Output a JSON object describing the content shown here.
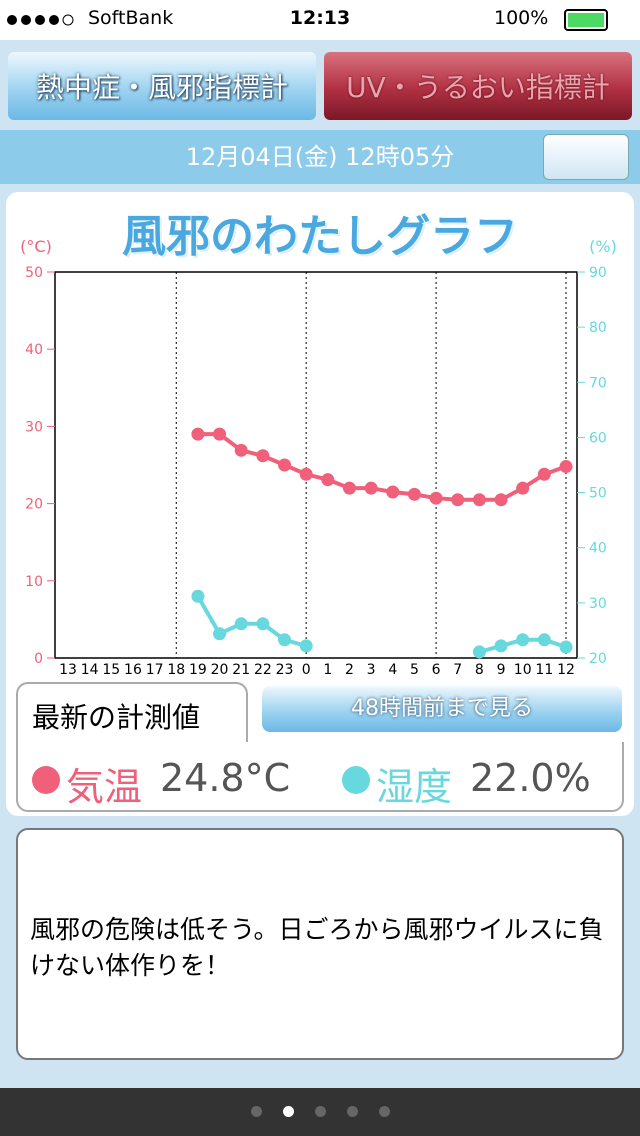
{
  "status_bar": {
    "carrier": "SoftBank",
    "time": "12:13",
    "battery": "100%"
  },
  "tabs": [
    "熱中症・風邪指標計",
    "UV・うるおい指標計"
  ],
  "date_bar": "12月04日(金) 12時05分",
  "chart_data": {
    "type": "line",
    "title": "風邪のわたしグラフ",
    "y_label": "(°C)",
    "y2_label": "(%)",
    "categories": [
      "13",
      "14",
      "15",
      "16",
      "17",
      "18",
      "19",
      "20",
      "21",
      "22",
      "23",
      "0",
      "1",
      "2",
      "3",
      "4",
      "5",
      "6",
      "7",
      "8",
      "9",
      "10",
      "11",
      "12"
    ],
    "series": [
      {
        "name": "気温",
        "color": "#f0607a",
        "values": [
          null,
          null,
          null,
          null,
          null,
          null,
          29.0,
          29.0,
          26.9,
          26.2,
          25.0,
          23.8,
          23.1,
          22.0,
          22.0,
          21.5,
          21.2,
          20.7,
          20.5,
          20.5,
          20.5,
          22.0,
          23.8,
          24.8
        ]
      },
      {
        "name": "湿度",
        "color": "#66d8de",
        "axis": "y2",
        "values": [
          null,
          null,
          null,
          null,
          null,
          null,
          31.2,
          24.4,
          26.2,
          26.2,
          23.3,
          22.2,
          null,
          null,
          null,
          null,
          null,
          null,
          null,
          21.1,
          22.2,
          23.3,
          23.3,
          22.0
        ]
      }
    ],
    "ylim": [
      0,
      50
    ],
    "yticks": [
      0,
      10,
      20,
      30,
      40,
      50
    ],
    "y2lim": [
      20,
      90
    ],
    "y2ticks": [
      20,
      30,
      40,
      50,
      60,
      70,
      80,
      90
    ]
  },
  "panel": {
    "tab": "最新の計測値",
    "button": "48時間前まで見る",
    "temperature": {
      "label": "気温",
      "value": "24.8°C"
    },
    "humidity": {
      "label": "湿度",
      "value": "22.0%"
    }
  },
  "message": "風邪の危険は低そう。日ごろから風邪ウイルスに負けない体作りを！"
}
